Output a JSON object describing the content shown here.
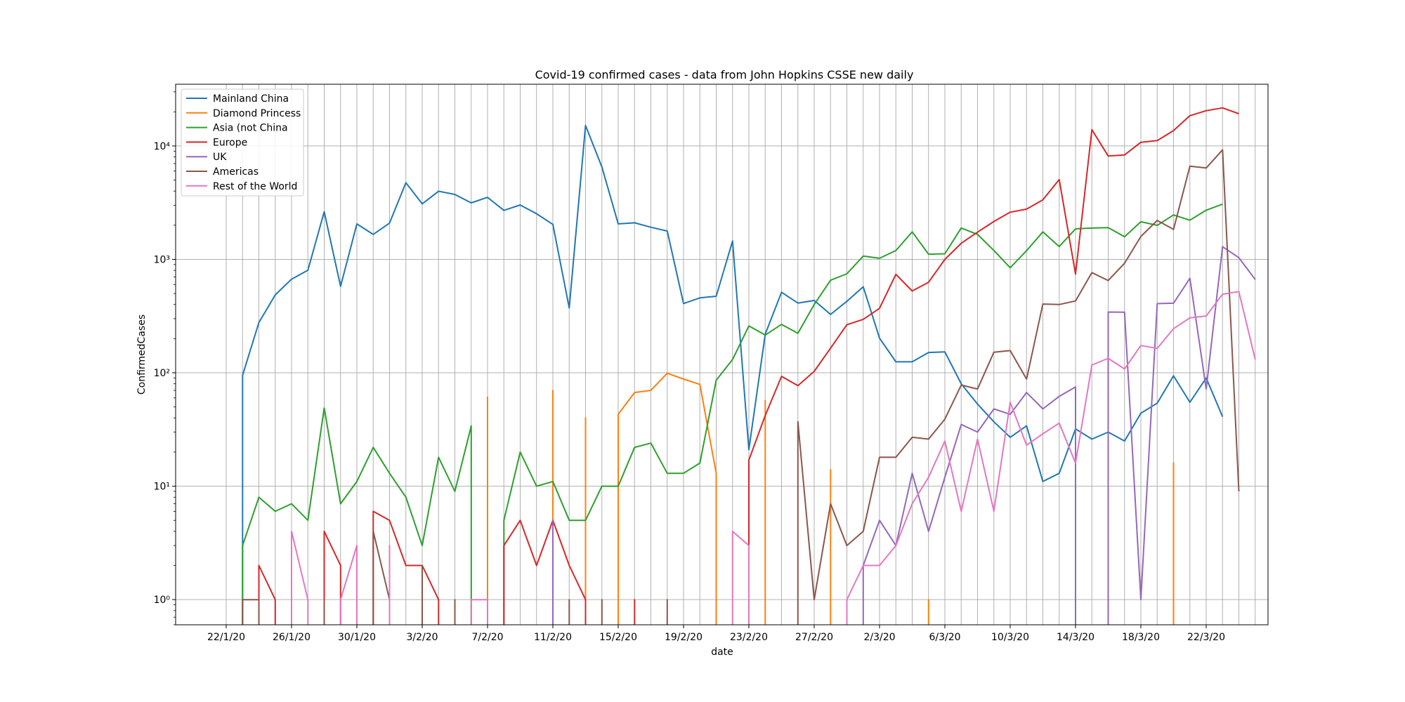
{
  "chart_data": {
    "type": "line",
    "title": "Covid-19 confirmed cases - data from John Hopkins CSSE new daily",
    "xlabel": "date",
    "ylabel": "ConfirmedCases",
    "yscale": "log",
    "ylim": [
      0.6,
      35000
    ],
    "grid": true,
    "legend_position": "top-left",
    "start_date": "2020-01-22",
    "x_tick_labels": [
      "22/1/20",
      "26/1/20",
      "30/1/20",
      "3/2/20",
      "7/2/20",
      "11/2/20",
      "15/2/20",
      "19/2/20",
      "23/2/20",
      "27/2/20",
      "2/3/20",
      "6/3/20",
      "10/3/20",
      "14/3/20",
      "18/3/20",
      "22/3/20"
    ],
    "y_ticks": [
      1,
      10,
      100,
      1000,
      10000
    ],
    "y_tick_labels": [
      "10⁰",
      "10¹",
      "10²",
      "10³",
      "10⁴"
    ],
    "series": [
      {
        "name": "Mainland China",
        "color": "#1f77b4",
        "values": [
          null,
          95,
          277,
          486,
          669,
          802,
          2632,
          578,
          2054,
          1661,
          2089,
          4739,
          3086,
          3991,
          3733,
          3147,
          3523,
          2704,
          3015,
          2525,
          2032,
          373,
          15152,
          6517,
          2055,
          2100,
          1921,
          1777,
          408,
          458,
          473,
          1451,
          21,
          219,
          513,
          412,
          434,
          327,
          427,
          573,
          202,
          125,
          125,
          151,
          153,
          80,
          53,
          37,
          27,
          34,
          11,
          13,
          32,
          26,
          30,
          25,
          44,
          54,
          94,
          55,
          90,
          41
        ]
      },
      {
        "name": "Diamond Princess",
        "color": "#ff7f0e",
        "values": [
          null,
          null,
          null,
          null,
          null,
          null,
          null,
          null,
          null,
          null,
          null,
          null,
          null,
          null,
          null,
          null,
          61,
          null,
          null,
          null,
          70,
          null,
          40,
          null,
          43,
          67,
          70,
          99,
          88,
          79,
          13,
          null,
          null,
          57,
          null,
          null,
          null,
          14,
          null,
          null,
          null,
          null,
          null,
          1,
          null,
          null,
          null,
          null,
          null,
          null,
          null,
          null,
          null,
          null,
          null,
          null,
          null,
          null,
          16,
          null,
          null,
          null
        ]
      },
      {
        "name": "Asia (not China",
        "color": "#2ca02c",
        "values": [
          null,
          3,
          8,
          6,
          7,
          5,
          49,
          7,
          11,
          22,
          13,
          8,
          3,
          18,
          9,
          34,
          null,
          5,
          20,
          10,
          11,
          5,
          5,
          10,
          10,
          22,
          24,
          13,
          13,
          16,
          86,
          131,
          259,
          215,
          267,
          223,
          400,
          655,
          746,
          1069,
          1023,
          1196,
          1747,
          1111,
          1121,
          1889,
          1660,
          1198,
          843,
          1192,
          1748,
          1297,
          1858,
          1888,
          1906,
          1582,
          2145,
          1994,
          2463,
          2213,
          2713,
          3067
        ]
      },
      {
        "name": "Europe",
        "color": "#d62728",
        "values": [
          null,
          null,
          2,
          1,
          null,
          null,
          4,
          2,
          null,
          6,
          5,
          2,
          2,
          1,
          null,
          null,
          null,
          3,
          5,
          2,
          5,
          2,
          1,
          null,
          null,
          1,
          null,
          null,
          null,
          null,
          null,
          null,
          17,
          42,
          93,
          77,
          103,
          165,
          265,
          296,
          370,
          738,
          526,
          628,
          1000,
          1386,
          1738,
          2159,
          2606,
          2773,
          3352,
          5052,
          742,
          13907,
          8157,
          8331,
          10765,
          11145,
          13672,
          18484,
          20456,
          21651,
          19247
        ]
      },
      {
        "name": "UK",
        "color": "#9467bd",
        "values": [
          null,
          null,
          null,
          null,
          null,
          null,
          null,
          null,
          null,
          null,
          null,
          null,
          null,
          null,
          null,
          null,
          null,
          null,
          null,
          null,
          5,
          null,
          null,
          null,
          null,
          null,
          null,
          null,
          null,
          null,
          null,
          null,
          null,
          null,
          null,
          null,
          null,
          null,
          null,
          2,
          5,
          3,
          13,
          4,
          12,
          35,
          30,
          48,
          43,
          67,
          48,
          62,
          75,
          null,
          343,
          342,
          1,
          407,
          411,
          681,
          72,
          1293,
          1035,
          665
        ]
      },
      {
        "name": "Americas",
        "color": "#8c564b",
        "values": [
          null,
          1,
          1,
          null,
          null,
          null,
          1,
          null,
          null,
          4,
          1,
          null,
          2,
          null,
          1,
          null,
          null,
          null,
          null,
          null,
          null,
          1,
          null,
          1,
          null,
          null,
          null,
          1,
          null,
          null,
          null,
          null,
          null,
          null,
          null,
          37,
          1,
          7,
          3,
          4,
          18,
          18,
          27,
          26,
          39,
          78,
          72,
          152,
          157,
          88,
          404,
          400,
          430,
          765,
          651,
          924,
          1590,
          2204,
          1838,
          6627,
          6394,
          9241,
          9
        ]
      },
      {
        "name": "Rest of the World",
        "color": "#e377c2",
        "values": [
          null,
          null,
          null,
          null,
          4,
          1,
          null,
          1,
          3,
          null,
          3,
          null,
          null,
          null,
          null,
          1,
          1,
          null,
          null,
          null,
          null,
          null,
          null,
          null,
          null,
          null,
          null,
          null,
          null,
          null,
          null,
          4,
          3,
          null,
          null,
          null,
          null,
          null,
          1,
          2,
          2,
          3,
          7,
          12,
          25,
          6,
          26,
          6,
          55,
          23,
          29,
          36,
          16,
          117,
          134,
          108,
          174,
          164,
          245,
          305,
          317,
          493,
          520,
          131
        ]
      }
    ]
  }
}
